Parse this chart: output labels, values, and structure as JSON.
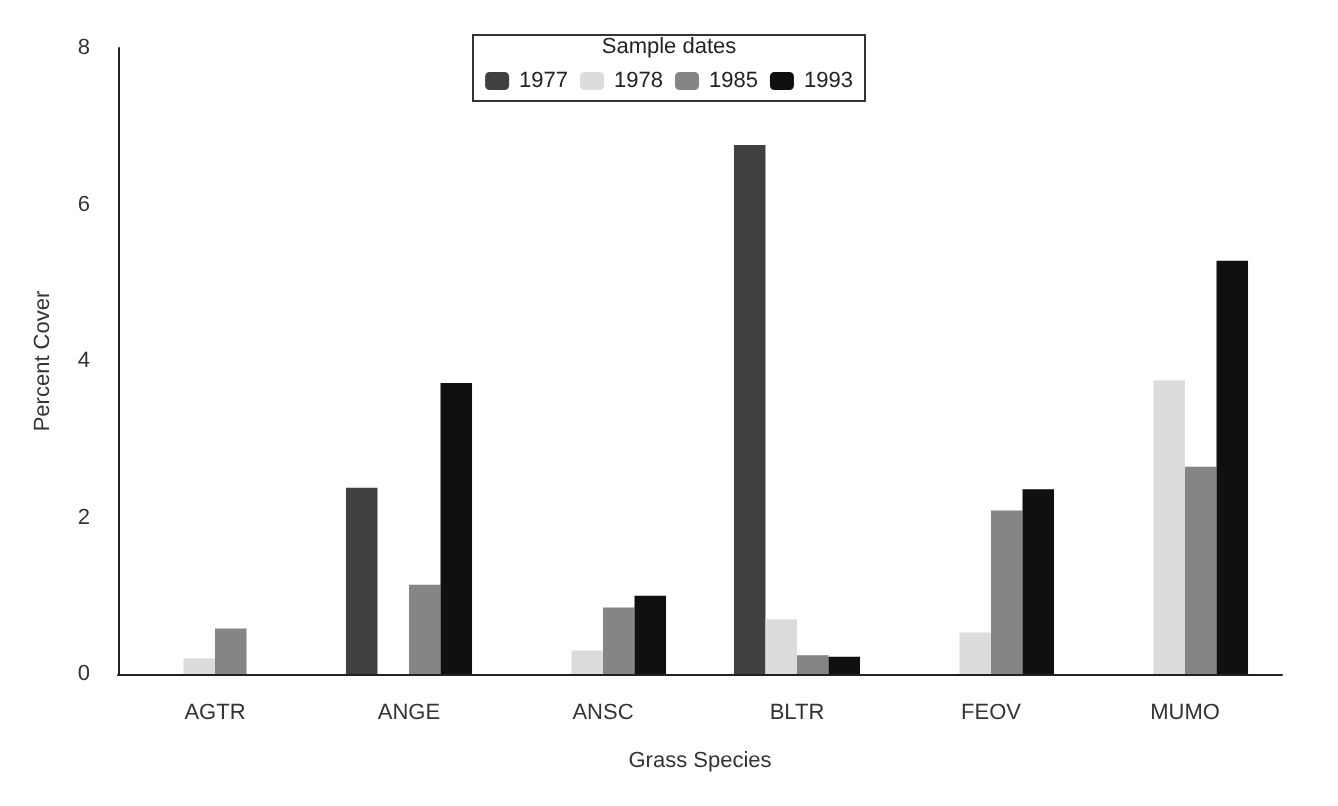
{
  "chart_data": {
    "type": "bar",
    "xlabel": "Grass Species",
    "ylabel": "Percent Cover",
    "legend_title": "Sample dates",
    "categories": [
      "AGTR",
      "ANGE",
      "ANSC",
      "BLTR",
      "FEOV",
      "MUMO"
    ],
    "series": [
      {
        "name": "1977",
        "color": "#404040",
        "values": [
          null,
          2.38,
          null,
          6.76,
          null,
          null
        ]
      },
      {
        "name": "1978",
        "color": "#dcdcdc",
        "values": [
          0.2,
          null,
          0.3,
          0.7,
          0.53,
          3.75
        ]
      },
      {
        "name": "1985",
        "color": "#858585",
        "values": [
          0.58,
          1.14,
          0.85,
          0.24,
          2.09,
          2.65
        ]
      },
      {
        "name": "1993",
        "color": "#101010",
        "values": [
          null,
          3.72,
          1.0,
          0.22,
          2.36,
          5.28
        ]
      }
    ],
    "ylim": [
      0,
      8
    ],
    "yticks": [
      0,
      2,
      4,
      6,
      8
    ],
    "grid": false,
    "legend": "top"
  }
}
